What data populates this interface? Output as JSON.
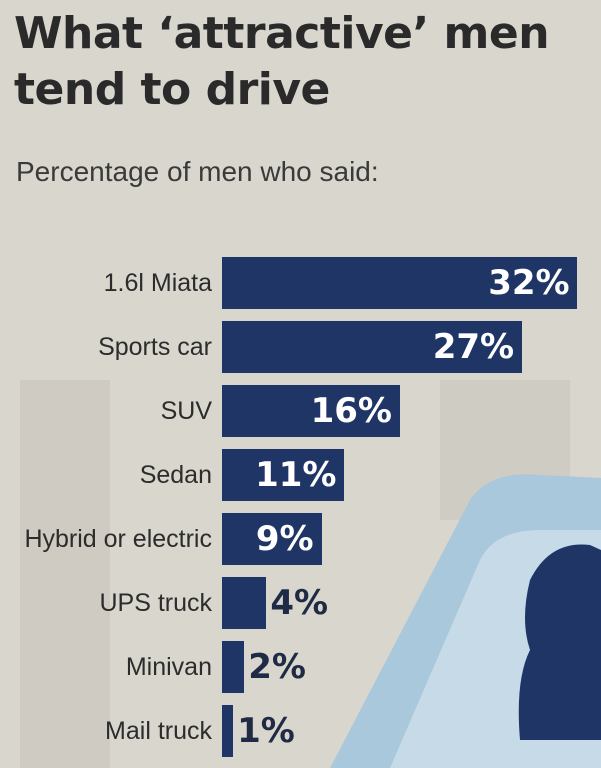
{
  "chart_data": {
    "type": "bar",
    "orientation": "horizontal",
    "title": "What ‘attractive’ men tend to drive",
    "subtitle": "Percentage of men who said:",
    "categories": [
      "1.6l Miata",
      "Sports car",
      "SUV",
      "Sedan",
      "Hybrid or electric",
      "UPS truck",
      "Minivan",
      "Mail truck"
    ],
    "values": [
      32,
      27,
      16,
      11,
      9,
      4,
      2,
      1
    ],
    "value_labels": [
      "32%",
      "27%",
      "16%",
      "11%",
      "9%",
      "4%",
      "2%",
      "1%"
    ],
    "color": "#1f3566"
  }
}
